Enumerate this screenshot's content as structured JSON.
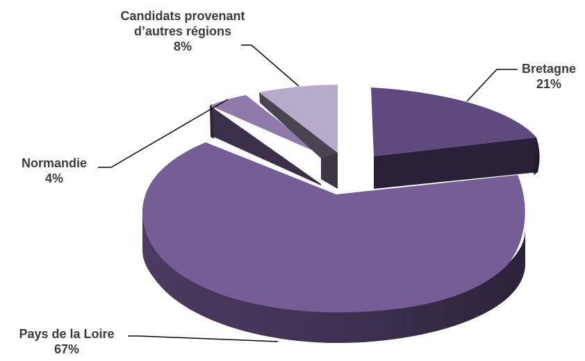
{
  "chart_data": {
    "type": "pie",
    "style": "3d-exploded",
    "slices": [
      {
        "label": "Bretagne",
        "value": 21,
        "display": "21%",
        "color": "#5f4a7d"
      },
      {
        "label": "Pays de la Loire",
        "value": 67,
        "display": "67%",
        "color": "#755d96"
      },
      {
        "label": "Normandie",
        "value": 4,
        "display": "4%",
        "color": "#8f7aab"
      },
      {
        "label": "Candidats provenant d’autres régions",
        "label_lines": [
          "Candidats provenant",
          "d’autres régions"
        ],
        "value": 8,
        "display": "8%",
        "color": "#b7abc9"
      }
    ],
    "title": "",
    "legend": "none"
  }
}
